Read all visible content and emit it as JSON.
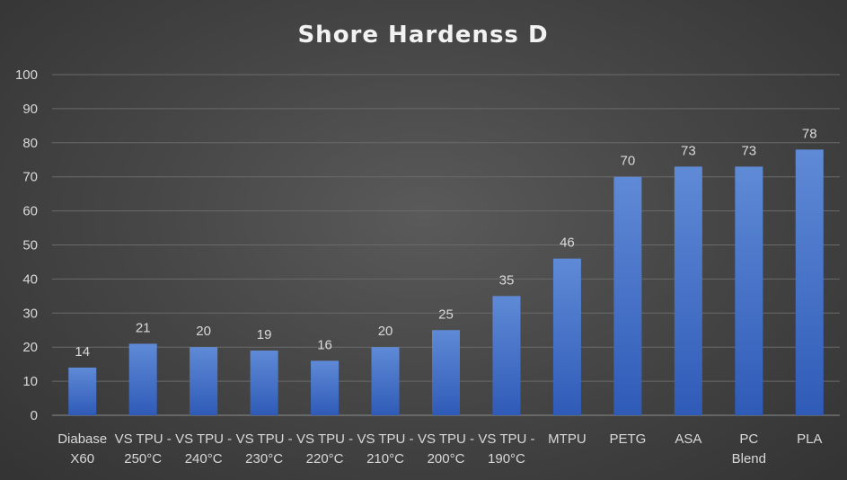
{
  "chart_data": {
    "type": "bar",
    "title": "Shore Hardenss D",
    "xlabel": "",
    "ylabel": "",
    "ylim": [
      0,
      100
    ],
    "yticks": [
      0,
      10,
      20,
      30,
      40,
      50,
      60,
      70,
      80,
      90,
      100
    ],
    "categories": [
      [
        "Diabase",
        "X60"
      ],
      [
        "VS TPU -",
        "250°C"
      ],
      [
        "VS TPU -",
        "240°C"
      ],
      [
        "VS TPU -",
        "230°C"
      ],
      [
        "VS TPU -",
        "220°C"
      ],
      [
        "VS TPU -",
        "210°C"
      ],
      [
        "VS TPU -",
        "200°C"
      ],
      [
        "VS TPU -",
        "190°C"
      ],
      [
        "MTPU"
      ],
      [
        "PETG"
      ],
      [
        "ASA"
      ],
      [
        "PC",
        "Blend"
      ],
      [
        "PLA"
      ]
    ],
    "values": [
      14,
      21,
      20,
      19,
      16,
      20,
      25,
      35,
      46,
      70,
      73,
      73,
      78
    ],
    "grid": true,
    "legend": "none",
    "bar_color_top": "#5f8ad6",
    "bar_color_bottom": "#2f5bb8"
  }
}
